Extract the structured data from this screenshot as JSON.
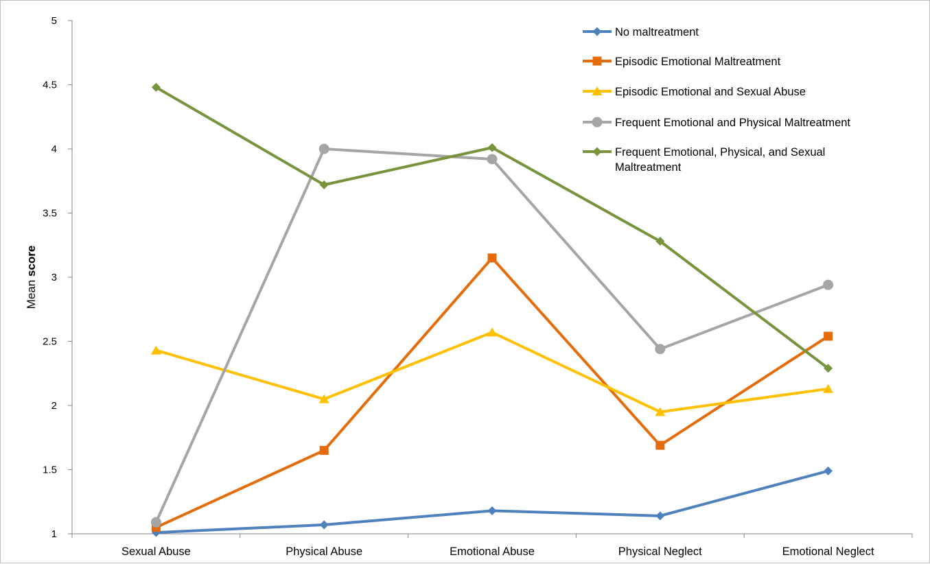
{
  "chart_data": {
    "type": "line",
    "categories": [
      "Sexual Abuse",
      "Physical Abuse",
      "Emotional Abuse",
      "Physical Neglect",
      "Emotional Neglect"
    ],
    "ylabel_prefix": "Mean ",
    "ylabel_bold": "score",
    "ylim": [
      1,
      5
    ],
    "yticks": [
      "1",
      "1.5",
      "2",
      "2.5",
      "3",
      "3.5",
      "4",
      "4.5",
      "5"
    ],
    "grid": false,
    "legend_position": "top-right",
    "series": [
      {
        "name": "No maltreatment",
        "marker": "diamond",
        "color": "#4f81bd",
        "values": [
          1.01,
          1.07,
          1.18,
          1.14,
          1.49
        ]
      },
      {
        "name": "Episodic Emotional Maltreatment",
        "marker": "square",
        "color": "#e46c0a",
        "values": [
          1.05,
          1.65,
          3.15,
          1.69,
          2.54
        ]
      },
      {
        "name": "Episodic Emotional and Sexual Abuse",
        "marker": "triangle",
        "color": "#ffc000",
        "values": [
          2.43,
          2.05,
          2.57,
          1.95,
          2.13
        ]
      },
      {
        "name": "Frequent Emotional and Physical Maltreatment",
        "marker": "circle",
        "color": "#a5a5a5",
        "values": [
          1.09,
          4.0,
          3.92,
          2.44,
          2.94
        ]
      },
      {
        "name": "Frequent Emotional, Physical, and Sexual Maltreatment",
        "name_lines": [
          "Frequent Emotional, Physical, and Sexual",
          "Maltreatment"
        ],
        "marker": "diamond",
        "color": "#77933c",
        "values": [
          4.48,
          3.72,
          4.01,
          3.28,
          2.29
        ]
      }
    ]
  }
}
